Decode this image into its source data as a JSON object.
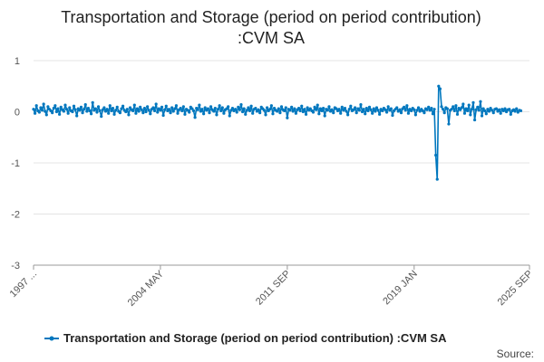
{
  "chart_data": {
    "type": "line",
    "title_lines": [
      "Transportation and Storage (period on period contribution)",
      ":CVM SA"
    ],
    "series": [
      {
        "name": "Transportation and Storage (period on period contribution) :CVM SA",
        "color": "#0077be",
        "start_index": 0,
        "values": [
          0.05,
          -0.03,
          0.12,
          0.02,
          -0.01,
          0.08,
          0.03,
          0.15,
          0.01,
          -0.06,
          0.1,
          0.05,
          0.02,
          -0.02,
          0.07,
          0.12,
          0.0,
          0.06,
          -0.05,
          0.09,
          0.04,
          0.01,
          0.13,
          0.05,
          -0.03,
          0.08,
          0.02,
          0.0,
          0.11,
          0.04,
          -0.08,
          0.06,
          0.03,
          0.09,
          -0.02,
          0.05,
          0.14,
          0.01,
          0.07,
          0.02,
          -0.04,
          0.18,
          0.03,
          0.06,
          -0.01,
          0.1,
          0.02,
          -0.09,
          0.04,
          0.08,
          0.01,
          0.05,
          -0.03,
          0.12,
          0.02,
          0.07,
          -0.05,
          0.03,
          0.09,
          0.01,
          -0.02,
          0.06,
          0.11,
          0.03,
          0.0,
          0.05,
          -0.06,
          0.08,
          0.04,
          0.02,
          0.13,
          -0.03,
          0.06,
          0.01,
          0.09,
          0.04,
          -0.02,
          0.07,
          0.0,
          0.1,
          0.03,
          -0.04,
          0.05,
          0.08,
          0.02,
          0.15,
          -0.01,
          0.06,
          0.03,
          0.09,
          -0.07,
          0.04,
          0.11,
          0.02,
          0.05,
          -0.02,
          0.08,
          0.01,
          0.06,
          0.12,
          -0.03,
          0.04,
          0.07,
          0.02,
          0.1,
          -0.05,
          0.05,
          0.03,
          -0.01,
          0.09,
          0.06,
          0.02,
          -0.11,
          0.07,
          0.04,
          0.13,
          0.01,
          0.05,
          -0.04,
          0.08,
          0.03,
          0.06,
          -0.02,
          0.1,
          0.04,
          0.01,
          0.07,
          -0.06,
          0.05,
          0.12,
          0.02,
          0.08,
          -0.03,
          0.04,
          0.06,
          0.1,
          -0.08,
          0.03,
          0.07,
          0.02,
          0.05,
          -0.01,
          0.09,
          0.04,
          0.14,
          0.0,
          0.06,
          -0.05,
          0.03,
          0.08,
          0.02,
          0.11,
          -0.03,
          0.05,
          0.07,
          0.01,
          0.04,
          -0.02,
          0.09,
          0.06,
          0.03,
          -0.06,
          0.08,
          0.02,
          0.05,
          0.12,
          -0.04,
          0.07,
          0.03,
          0.01,
          0.06,
          -0.02,
          0.1,
          0.04,
          0.02,
          0.08,
          -0.12,
          0.05,
          0.03,
          0.09,
          0.01,
          0.06,
          -0.03,
          0.04,
          0.07,
          0.02,
          0.11,
          0.0,
          0.05,
          -0.05,
          0.08,
          0.03,
          0.06,
          0.02,
          -0.01,
          0.09,
          0.04,
          0.13,
          -0.04,
          0.06,
          0.02,
          0.07,
          -0.08,
          0.05,
          0.03,
          0.1,
          0.01,
          0.04,
          -0.02,
          0.08,
          0.06,
          0.02,
          0.05,
          -0.03,
          0.09,
          0.03,
          0.07,
          0.01,
          -0.06,
          0.05,
          0.11,
          0.02,
          0.04,
          0.08,
          -0.02,
          0.06,
          0.03,
          0.14,
          0.0,
          0.05,
          -0.04,
          0.07,
          0.02,
          0.09,
          0.04,
          -0.03,
          0.06,
          0.01,
          0.08,
          0.03,
          -0.05,
          0.05,
          0.02,
          0.07,
          0.04,
          -0.01,
          0.1,
          0.03,
          0.06,
          -0.07,
          0.02,
          0.05,
          0.08,
          0.01,
          0.04,
          -0.02,
          0.06,
          0.09,
          0.03,
          0.12,
          -0.03,
          0.05,
          0.02,
          0.07,
          0.04,
          -0.06,
          0.03,
          0.08,
          0.01,
          0.05,
          0.02,
          -0.02,
          0.06,
          0.04,
          0.09,
          0.03,
          0.07,
          -0.04,
          0.05,
          -0.85,
          -1.32,
          0.5,
          0.45,
          0.1,
          0.05,
          -0.02,
          0.08,
          0.06,
          -0.24,
          0.03,
          0.05,
          0.1,
          0.02,
          0.12,
          -0.05,
          0.07,
          0.04,
          0.08,
          0.15,
          -0.03,
          0.06,
          0.02,
          0.13,
          -0.06,
          0.05,
          0.18,
          -0.16,
          0.04,
          0.09,
          0.03,
          0.2,
          -0.08,
          0.06,
          0.02,
          -0.04,
          0.05,
          0.01,
          0.07,
          0.03,
          -0.02,
          0.05,
          0.06,
          0.01,
          0.04,
          -0.03,
          0.05,
          0.02,
          0.06,
          0.0,
          0.04,
          0.05,
          -0.05,
          0.02,
          0.04,
          0.01,
          0.06,
          -0.01,
          0.03,
          0.02
        ]
      }
    ],
    "y_ticks": [
      1,
      0,
      -1,
      -2,
      -3
    ],
    "ylim": [
      -3,
      1
    ],
    "x_tick_labels": [
      "1997 ...",
      "2004 MAY",
      "2011 SEP",
      "2019 JAN",
      "2025 SEP"
    ],
    "x_tick_indices": [
      0,
      88,
      176,
      264,
      344
    ],
    "xlabel": "",
    "ylabel": "",
    "legend_position": "bottom",
    "source_text": "Source:"
  }
}
